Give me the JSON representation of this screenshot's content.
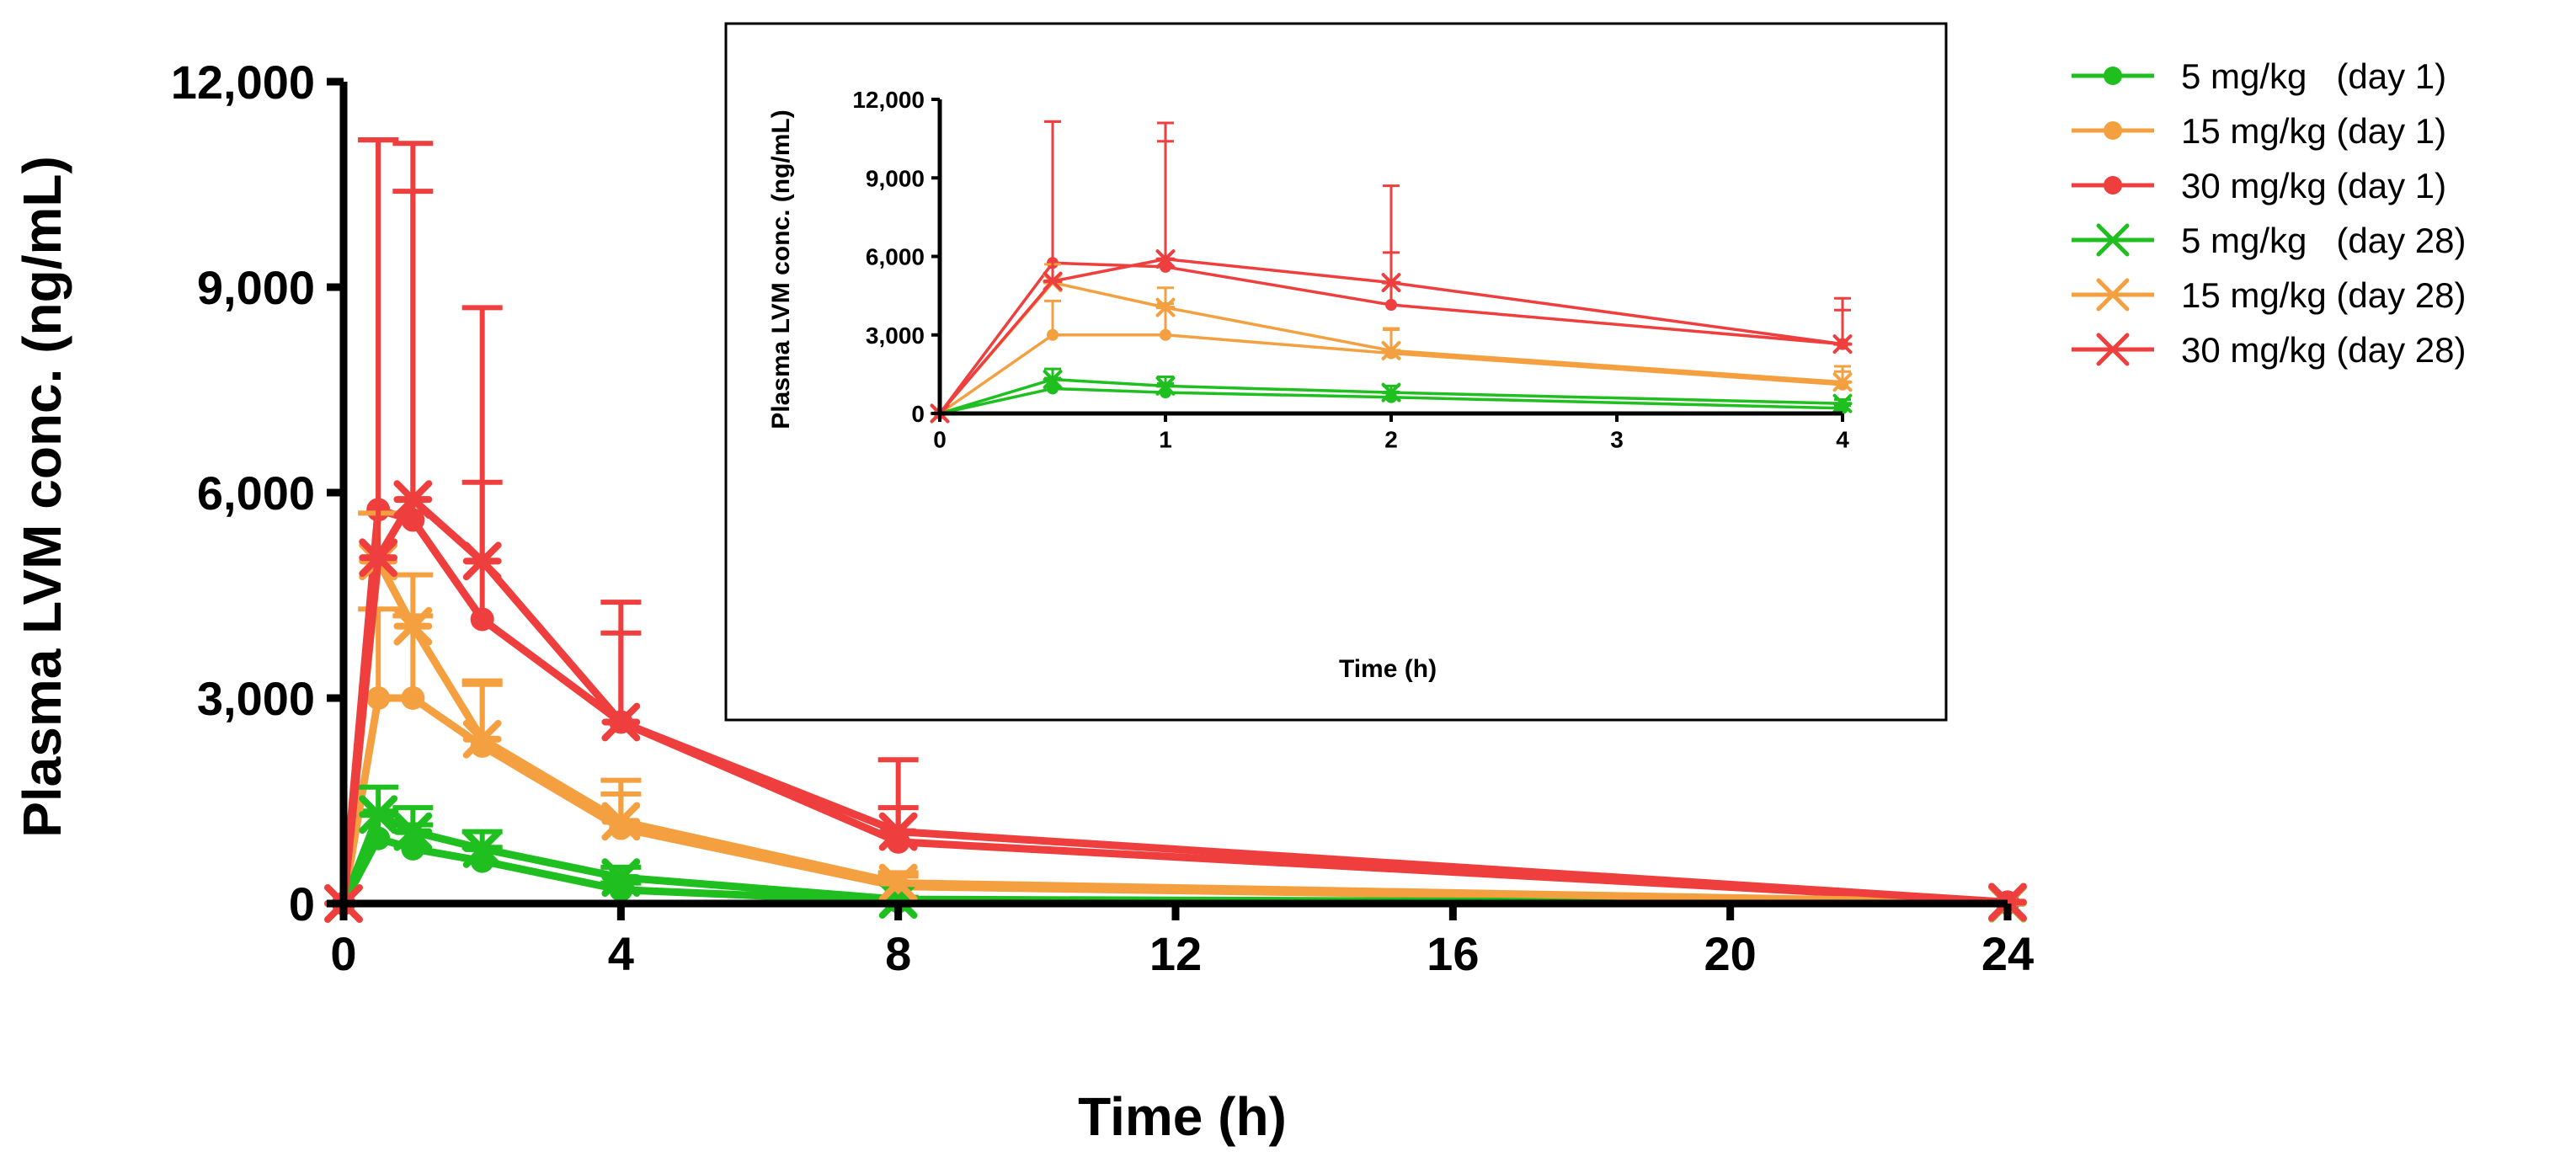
{
  "chart_data": [
    {
      "id": "main",
      "type": "line",
      "title": "",
      "xlabel": "Time (h)",
      "ylabel": "Plasma LVM conc. (ng/mL)",
      "xlim": [
        0,
        24
      ],
      "ylim": [
        0,
        12000
      ],
      "xticks": [
        0,
        4,
        8,
        12,
        16,
        20,
        24
      ],
      "xtick_labels": [
        "0",
        "4",
        "8",
        "12",
        "16",
        "20",
        "24"
      ],
      "yticks": [
        0,
        3000,
        6000,
        9000,
        12000
      ],
      "ytick_labels": [
        "0",
        "3,000",
        "6,000",
        "9,000",
        "12,000"
      ],
      "grid": false
    },
    {
      "id": "inset",
      "type": "line",
      "title": "",
      "xlabel": "Time (h)",
      "ylabel": "Plasma LVM conc. (ng/mL)",
      "xlim": [
        0,
        4
      ],
      "ylim": [
        0,
        12000
      ],
      "xticks": [
        0,
        1,
        2,
        3,
        4
      ],
      "xtick_labels": [
        "0",
        "1",
        "2",
        "3",
        "4"
      ],
      "yticks": [
        0,
        3000,
        6000,
        9000,
        12000
      ],
      "ytick_labels": [
        "0",
        "3,000",
        "6,000",
        "9,000",
        "12,000"
      ],
      "grid": false
    }
  ],
  "series": [
    {
      "key": "d1_5",
      "name": "5 mg/kg   (day 1)",
      "color": "#1fbf1f",
      "marker": "circle",
      "x": [
        0,
        0.5,
        1,
        2,
        4,
        8,
        24
      ],
      "y": [
        0,
        950,
        800,
        620,
        200,
        30,
        5
      ],
      "err": [
        0,
        400,
        350,
        200,
        100,
        20,
        0
      ]
    },
    {
      "key": "d1_15",
      "name": "15 mg/kg (day 1)",
      "color": "#f5a040",
      "marker": "circle",
      "x": [
        0,
        0.5,
        1,
        2,
        4,
        8,
        24
      ],
      "y": [
        0,
        3000,
        3000,
        2300,
        1100,
        250,
        10
      ],
      "err": [
        0,
        1300,
        1200,
        900,
        500,
        150,
        0
      ]
    },
    {
      "key": "d1_30",
      "name": "30 mg/kg (day 1)",
      "color": "#ef3e3e",
      "marker": "circle",
      "x": [
        0,
        0.5,
        1,
        2,
        4,
        8,
        24
      ],
      "y": [
        0,
        5750,
        5600,
        4150,
        2650,
        900,
        20
      ],
      "err": [
        0,
        5400,
        4800,
        2000,
        1300,
        500,
        0
      ]
    },
    {
      "key": "d28_5",
      "name": "5 mg/kg   (day 28)",
      "color": "#1fbf1f",
      "marker": "x",
      "x": [
        0,
        0.5,
        1,
        2,
        4,
        8,
        24
      ],
      "y": [
        0,
        1300,
        1050,
        800,
        380,
        60,
        5
      ],
      "err": [
        0,
        400,
        350,
        250,
        150,
        30,
        0
      ]
    },
    {
      "key": "d28_15",
      "name": "15 mg/kg (day 28)",
      "color": "#f5a040",
      "marker": "x",
      "x": [
        0,
        0.5,
        1,
        2,
        4,
        8,
        24
      ],
      "y": [
        0,
        5000,
        4050,
        2400,
        1200,
        300,
        10
      ],
      "err": [
        0,
        700,
        750,
        850,
        600,
        150,
        0
      ]
    },
    {
      "key": "d28_30",
      "name": "30 mg/kg (day 28)",
      "color": "#ef3e3e",
      "marker": "x",
      "x": [
        0,
        0.5,
        1,
        2,
        4,
        8,
        24
      ],
      "y": [
        0,
        5050,
        5900,
        5000,
        2650,
        1050,
        20
      ],
      "err": [
        0,
        6100,
        5200,
        3700,
        1750,
        1050,
        0
      ]
    }
  ]
}
